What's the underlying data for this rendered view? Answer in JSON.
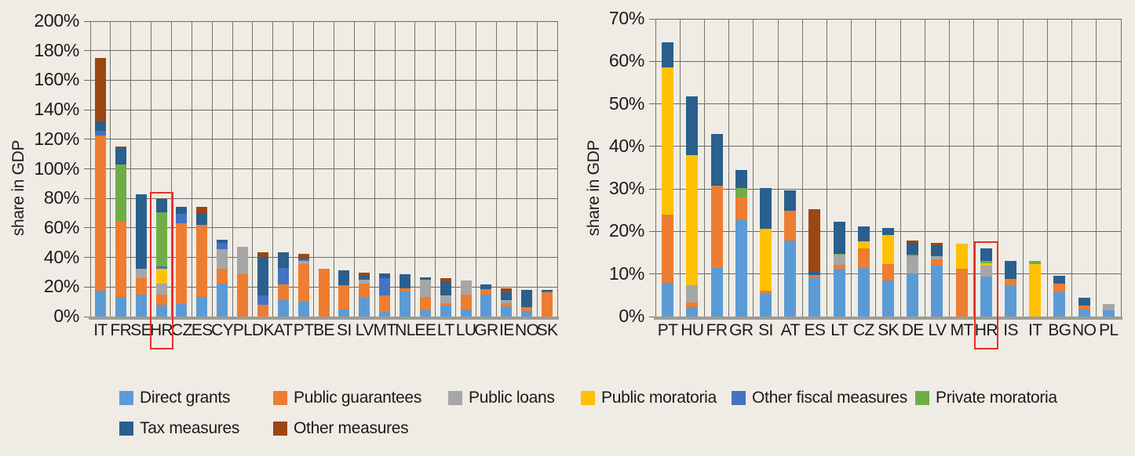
{
  "colors": {
    "background": "#efece5",
    "highlight": "#ec2d25",
    "direct_grants": "#5b9bd5",
    "public_guarantees": "#ed7d31",
    "public_loans": "#a6a6a6",
    "public_moratoria": "#fec104",
    "other_fiscal": "#4472c4",
    "private_moratoria": "#70ad47",
    "tax": "#2a5f8e",
    "other": "#9a4713"
  },
  "legend": {
    "items": [
      {
        "key": "direct_grants",
        "label": "Direct grants"
      },
      {
        "key": "public_guarantees",
        "label": "Public guarantees"
      },
      {
        "key": "public_loans",
        "label": "Public loans"
      },
      {
        "key": "public_moratoria",
        "label": "Public moratoria"
      },
      {
        "key": "other_fiscal",
        "label": "Other fiscal measures"
      },
      {
        "key": "private_moratoria",
        "label": "Private moratoria"
      },
      {
        "key": "tax",
        "label": "Tax measures"
      },
      {
        "key": "other",
        "label": "Other measures"
      }
    ]
  },
  "chart_data": [
    {
      "type": "bar",
      "stacked": true,
      "ylabel": "share in GDP",
      "ylim": [
        0,
        200
      ],
      "ytick_step": 20,
      "ytick_labels": [
        "0%",
        "20%",
        "40%",
        "60%",
        "80%",
        "100%",
        "120%",
        "140%",
        "160%",
        "180%",
        "200%"
      ],
      "grid": true,
      "highlight": "HR",
      "categories": [
        "IT",
        "FR",
        "SE",
        "HR",
        "CZ",
        "ES",
        "CY",
        "PL",
        "DK",
        "AT",
        "PT",
        "BE",
        "SI",
        "LV",
        "MT",
        "NL",
        "EE",
        "LT",
        "LU",
        "GR",
        "IE",
        "NO",
        "SK"
      ],
      "series": [
        {
          "name": "Direct grants",
          "key": "direct_grants",
          "values": [
            17.5,
            13,
            14.7,
            8.2,
            8.5,
            13.5,
            22.5,
            0,
            0,
            11,
            10,
            0,
            5,
            13,
            3,
            17,
            4.5,
            7.5,
            5,
            15,
            7,
            3.5,
            0
          ]
        },
        {
          "name": "Public guarantees",
          "key": "public_guarantees",
          "values": [
            105,
            51,
            11.2,
            6.5,
            54.5,
            48.5,
            10,
            28.5,
            8,
            10.5,
            25.5,
            32.5,
            16,
            9.5,
            11.5,
            2,
            8.5,
            1.5,
            10,
            3.5,
            2,
            3,
            16.3
          ]
        },
        {
          "name": "Public loans",
          "key": "public_loans",
          "values": [
            0,
            0,
            6.2,
            7.7,
            0,
            0,
            13,
            18.5,
            0,
            0,
            2,
            0,
            0,
            2.5,
            0,
            0,
            12,
            5.5,
            9.5,
            0,
            2,
            0,
            0
          ]
        },
        {
          "name": "Public moratoria",
          "key": "public_moratoria",
          "values": [
            0,
            0,
            0,
            10.1,
            0,
            0,
            0,
            0,
            0,
            0,
            0,
            0,
            0,
            0,
            0,
            0,
            0,
            0,
            0,
            0,
            0,
            0,
            0
          ]
        },
        {
          "name": "Other fiscal measures",
          "key": "other_fiscal",
          "values": [
            3,
            0,
            0,
            1.4,
            6.5,
            0,
            4.5,
            0,
            6.5,
            11.5,
            1,
            0,
            0,
            0,
            11.5,
            0,
            0,
            0,
            0,
            0,
            0,
            0,
            0.8
          ]
        },
        {
          "name": "Private moratoria",
          "key": "private_moratoria",
          "values": [
            0,
            39,
            0,
            36.4,
            0,
            0,
            0,
            0,
            0,
            0,
            0,
            0,
            0,
            0,
            0,
            0,
            0,
            0,
            0,
            0,
            0,
            0,
            0
          ]
        },
        {
          "name": "Tax measures",
          "key": "tax",
          "values": [
            6.5,
            11,
            50.6,
            9.4,
            5,
            8,
            2,
            0,
            26,
            10.5,
            1,
            0,
            10.5,
            2.5,
            3,
            9.5,
            1.5,
            9,
            0,
            3,
            5.3,
            11.7,
            0.8
          ]
        },
        {
          "name": "Other measures",
          "key": "other",
          "values": [
            43,
            1,
            0,
            0,
            0,
            4.5,
            0,
            0,
            3,
            0,
            3,
            0,
            0,
            2,
            0,
            0,
            0,
            2.5,
            0,
            0,
            3,
            0,
            0
          ]
        }
      ]
    },
    {
      "type": "bar",
      "stacked": true,
      "ylabel": "share in GDP",
      "ylim": [
        0,
        70
      ],
      "ytick_step": 10,
      "ytick_labels": [
        "0%",
        "10%",
        "20%",
        "30%",
        "40%",
        "50%",
        "60%",
        "70%"
      ],
      "grid": true,
      "highlight": "HR",
      "categories": [
        "PT",
        "HU",
        "FR",
        "GR",
        "SI",
        "AT",
        "ES",
        "LT",
        "CZ",
        "SK",
        "DE",
        "LV",
        "MT",
        "HR",
        "IS",
        "IT",
        "BG",
        "NO",
        "PL"
      ],
      "series": [
        {
          "name": "Direct grants",
          "key": "direct_grants",
          "values": [
            8,
            2.3,
            11.4,
            22.6,
            5.3,
            17.9,
            9.2,
            11.2,
            11.4,
            8.5,
            10.2,
            12,
            0,
            9.4,
            7.1,
            0,
            5.7,
            1.6,
            1.4
          ]
        },
        {
          "name": "Public guarantees",
          "key": "public_guarantees",
          "values": [
            16,
            1,
            19.3,
            5.4,
            0.7,
            6.9,
            0.5,
            1,
            4.6,
            3.9,
            0,
            1.4,
            11.2,
            0,
            1.8,
            0,
            2,
            1,
            0
          ]
        },
        {
          "name": "Public loans",
          "key": "public_loans",
          "values": [
            0,
            4,
            0,
            0,
            0,
            0,
            0,
            2.3,
            0,
            0,
            3.9,
            0.7,
            0,
            2.6,
            0,
            0,
            0,
            0,
            1.5
          ]
        },
        {
          "name": "Public moratoria",
          "key": "public_moratoria",
          "values": [
            34.5,
            30.7,
            0,
            0,
            14.7,
            0,
            0,
            0,
            1.6,
            6.7,
            0,
            0,
            5.9,
            0.6,
            0,
            12.4,
            0,
            0,
            0
          ]
        },
        {
          "name": "Other fiscal measures",
          "key": "other_fiscal",
          "values": [
            0,
            0,
            0,
            0,
            0,
            0,
            0,
            0,
            0,
            0,
            0,
            0,
            0,
            0,
            0,
            0,
            0,
            0,
            0
          ]
        },
        {
          "name": "Private moratoria",
          "key": "private_moratoria",
          "values": [
            0,
            0,
            0,
            2.2,
            0,
            0,
            0,
            0.3,
            0,
            0,
            0.4,
            0,
            0,
            0.5,
            0,
            0.7,
            0,
            0,
            0
          ]
        },
        {
          "name": "Tax measures",
          "key": "tax",
          "values": [
            6,
            13.7,
            12.3,
            4.2,
            9.5,
            4.8,
            1,
            7.4,
            3.5,
            1.7,
            2.8,
            2.7,
            0,
            2.9,
            4.1,
            0,
            1.8,
            1.8,
            0
          ]
        },
        {
          "name": "Other measures",
          "key": "other",
          "values": [
            0,
            0,
            0,
            0,
            0,
            0,
            14.5,
            0,
            0,
            0,
            0.6,
            0.6,
            0,
            0,
            0,
            0,
            0,
            0,
            0
          ]
        }
      ]
    }
  ]
}
